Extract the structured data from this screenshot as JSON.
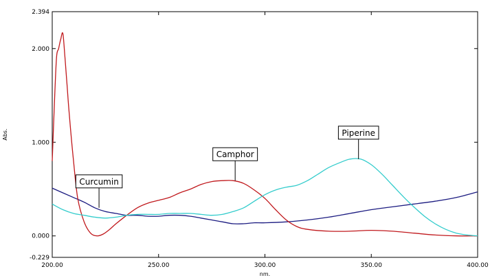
{
  "chart_data": {
    "type": "line",
    "title": "",
    "xlabel": "nm.",
    "ylabel": "Abs.",
    "xlim": [
      200,
      400
    ],
    "ylim": [
      -0.229,
      2.394
    ],
    "x_ticks": [
      "200.00",
      "250.00",
      "300.00",
      "350.00",
      "400.00"
    ],
    "y_ticks": [
      "-0.229",
      "0.000",
      "1.000",
      "2.000",
      "2.394"
    ],
    "grid": false,
    "legend": "callouts",
    "series": [
      {
        "name": "Curcumin",
        "color": "#1a1a80",
        "x": [
          200,
          205,
          210,
          215,
          220,
          225,
          230,
          235,
          240,
          245,
          250,
          255,
          260,
          265,
          270,
          275,
          280,
          285,
          290,
          295,
          300,
          310,
          320,
          330,
          340,
          350,
          360,
          370,
          380,
          390,
          400
        ],
        "y": [
          0.51,
          0.46,
          0.41,
          0.36,
          0.3,
          0.26,
          0.24,
          0.22,
          0.22,
          0.21,
          0.21,
          0.22,
          0.22,
          0.21,
          0.19,
          0.17,
          0.15,
          0.13,
          0.13,
          0.14,
          0.14,
          0.15,
          0.17,
          0.2,
          0.24,
          0.28,
          0.31,
          0.34,
          0.37,
          0.41,
          0.47
        ]
      },
      {
        "name": "Camphor",
        "color": "#c0181c",
        "x": [
          200,
          201,
          202,
          203,
          204,
          205,
          206,
          207,
          208,
          210,
          212,
          215,
          218,
          221,
          224,
          227,
          230,
          235,
          240,
          245,
          250,
          255,
          260,
          265,
          270,
          275,
          280,
          285,
          290,
          295,
          300,
          305,
          310,
          315,
          320,
          330,
          340,
          350,
          360,
          370,
          380,
          390,
          400
        ],
        "y": [
          0.8,
          1.4,
          1.9,
          2.0,
          2.1,
          2.16,
          1.9,
          1.6,
          1.3,
          0.8,
          0.4,
          0.15,
          0.03,
          0.0,
          0.02,
          0.07,
          0.13,
          0.22,
          0.3,
          0.35,
          0.38,
          0.41,
          0.46,
          0.5,
          0.55,
          0.58,
          0.59,
          0.59,
          0.56,
          0.49,
          0.4,
          0.28,
          0.17,
          0.1,
          0.07,
          0.05,
          0.05,
          0.06,
          0.05,
          0.03,
          0.01,
          0.0,
          0.0
        ]
      },
      {
        "name": "Piperine",
        "color": "#33cccc",
        "x": [
          200,
          205,
          210,
          215,
          220,
          225,
          230,
          235,
          240,
          245,
          250,
          255,
          260,
          265,
          270,
          275,
          280,
          285,
          290,
          295,
          300,
          305,
          310,
          315,
          320,
          325,
          330,
          335,
          340,
          345,
          350,
          355,
          360,
          365,
          370,
          375,
          380,
          385,
          390,
          395,
          400
        ],
        "y": [
          0.34,
          0.28,
          0.24,
          0.22,
          0.2,
          0.19,
          0.2,
          0.22,
          0.23,
          0.23,
          0.23,
          0.24,
          0.24,
          0.24,
          0.23,
          0.22,
          0.23,
          0.26,
          0.3,
          0.37,
          0.44,
          0.49,
          0.52,
          0.54,
          0.59,
          0.66,
          0.73,
          0.78,
          0.82,
          0.82,
          0.76,
          0.66,
          0.54,
          0.42,
          0.31,
          0.21,
          0.13,
          0.07,
          0.03,
          0.01,
          0.0
        ]
      }
    ],
    "callouts": [
      {
        "label": "Curcumin",
        "series": "Curcumin",
        "x": 222,
        "y": 0.3
      },
      {
        "label": "Camphor",
        "series": "Camphor",
        "x": 286,
        "y": 0.59
      },
      {
        "label": "Piperine",
        "series": "Piperine",
        "x": 344,
        "y": 0.82
      }
    ]
  }
}
